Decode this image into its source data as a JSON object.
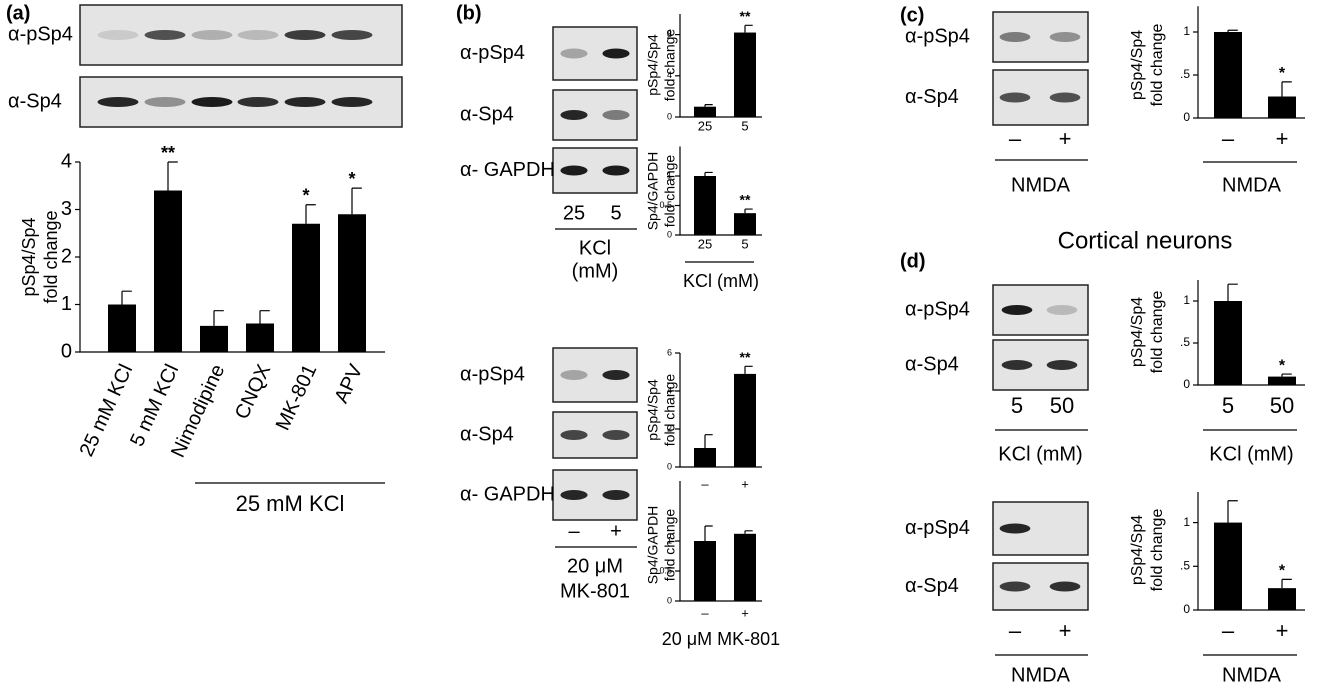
{
  "figure": {
    "panel_labels": [
      "(a)",
      "(b)",
      "(c)",
      "(d)"
    ],
    "section_title": "Cortical neurons",
    "blots": [
      {
        "rows": [
          "α-pSp4",
          "α-Sp4"
        ]
      },
      {
        "rows": [
          "α-pSp4",
          "α-Sp4",
          "α- GAPDH"
        ],
        "lanes": [
          "25",
          "5"
        ],
        "condition": [
          "KCl",
          "(mM)"
        ]
      },
      {
        "rows": [
          "α-pSp4",
          "α-Sp4",
          "α- GAPDH"
        ],
        "lanes": [
          "–",
          "+"
        ],
        "condition": [
          "20 μM",
          "MK-801"
        ]
      },
      {
        "rows": [
          "α-pSp4",
          "α-Sp4"
        ],
        "lanes": [
          "–",
          "+"
        ],
        "condition": [
          "NMDA"
        ]
      },
      {
        "rows": [
          "α-pSp4",
          "α-Sp4"
        ],
        "lanes": [
          "5",
          "50"
        ],
        "condition": [
          "KCl (mM)"
        ]
      },
      {
        "rows": [
          "α-pSp4",
          "α-Sp4"
        ],
        "lanes": [
          "–",
          "+"
        ],
        "condition": [
          "NMDA"
        ]
      }
    ]
  },
  "chart_data": [
    {
      "type": "bar",
      "ylabel": [
        "pSp4/Sp4",
        "fold change"
      ],
      "categories": [
        "25 mM KCl",
        "5 mM KCl",
        "Nimodipine",
        "CNQX",
        "MK-801",
        "APV"
      ],
      "values": [
        1.0,
        3.4,
        0.55,
        0.6,
        2.7,
        2.9
      ],
      "errors": [
        0.28,
        0.6,
        0.32,
        0.27,
        0.4,
        0.55
      ],
      "significance": [
        null,
        "**",
        null,
        null,
        "*",
        "*"
      ],
      "group_label": "25 mM KCl",
      "color": "#000000",
      "ylim": [
        0,
        4
      ],
      "yticks": [
        0,
        1,
        2,
        3,
        4
      ]
    },
    {
      "type": "bar",
      "ylabel": [
        "pSp4/Sp4",
        "fold change"
      ],
      "categories": [
        "25",
        "5"
      ],
      "values": [
        1.0,
        8.2
      ],
      "errors": [
        0.2,
        0.7
      ],
      "significance": [
        null,
        "**"
      ],
      "color": "#000000",
      "ylim": [
        0,
        10
      ],
      "yticks": [
        0,
        4,
        8
      ]
    },
    {
      "type": "bar",
      "ylabel": [
        "Sp4/GAPDH",
        "fold change"
      ],
      "categories": [
        "25",
        "5"
      ],
      "values": [
        1.0,
        0.37
      ],
      "errors": [
        0.06,
        0.07
      ],
      "significance": [
        null,
        "**"
      ],
      "xlabel": "KCl (mM)",
      "color": "#000000",
      "ylim": [
        0,
        1.5
      ],
      "yticks": [
        0,
        0.5,
        1
      ]
    },
    {
      "type": "bar",
      "ylabel": [
        "pSp4/Sp4",
        "fold change"
      ],
      "categories": [
        "–",
        "+"
      ],
      "values": [
        1.0,
        4.9
      ],
      "errors": [
        0.7,
        0.4
      ],
      "significance": [
        null,
        "**"
      ],
      "color": "#000000",
      "ylim": [
        0,
        6
      ],
      "yticks": [
        0,
        2,
        4,
        6
      ]
    },
    {
      "type": "bar",
      "ylabel": [
        "Sp4/GAPDH",
        "fold change"
      ],
      "categories": [
        "–",
        "+"
      ],
      "values": [
        1.0,
        1.12
      ],
      "errors": [
        0.25,
        0.05
      ],
      "significance": [
        null,
        null
      ],
      "xlabel": "20 μM MK-801",
      "color": "#000000",
      "ylim": [
        0,
        2
      ],
      "yticks": [
        0,
        0.5,
        1
      ]
    },
    {
      "type": "bar",
      "ylabel": [
        "pSp4/Sp4",
        "fold change"
      ],
      "categories": [
        "–",
        "+"
      ],
      "values": [
        1.0,
        0.25
      ],
      "errors": [
        0.02,
        0.17
      ],
      "significance": [
        null,
        "*"
      ],
      "xlabel": "NMDA",
      "color": "#000000",
      "ylim": [
        0,
        1.3
      ],
      "yticks": [
        0,
        {
          "value": 0.5,
          "label": ".5"
        },
        1
      ]
    },
    {
      "type": "bar",
      "ylabel": [
        "pSp4/Sp4",
        "fold change"
      ],
      "categories": [
        "5",
        "50"
      ],
      "values": [
        1.0,
        0.1
      ],
      "errors": [
        0.2,
        0.03
      ],
      "significance": [
        null,
        "*"
      ],
      "xlabel": "KCl (mM)",
      "color": "#000000",
      "ylim": [
        0,
        1.25
      ],
      "yticks": [
        0,
        {
          "value": 0.5,
          "label": ".5"
        },
        1
      ]
    },
    {
      "type": "bar",
      "ylabel": [
        "pSp4/Sp4",
        "fold change"
      ],
      "categories": [
        "–",
        "+"
      ],
      "values": [
        1.0,
        0.25
      ],
      "errors": [
        0.25,
        0.1
      ],
      "significance": [
        null,
        "*"
      ],
      "xlabel": "NMDA",
      "color": "#000000",
      "ylim": [
        0,
        1.35
      ],
      "yticks": [
        0,
        {
          "value": 0.5,
          "label": ".5"
        },
        1
      ]
    }
  ]
}
